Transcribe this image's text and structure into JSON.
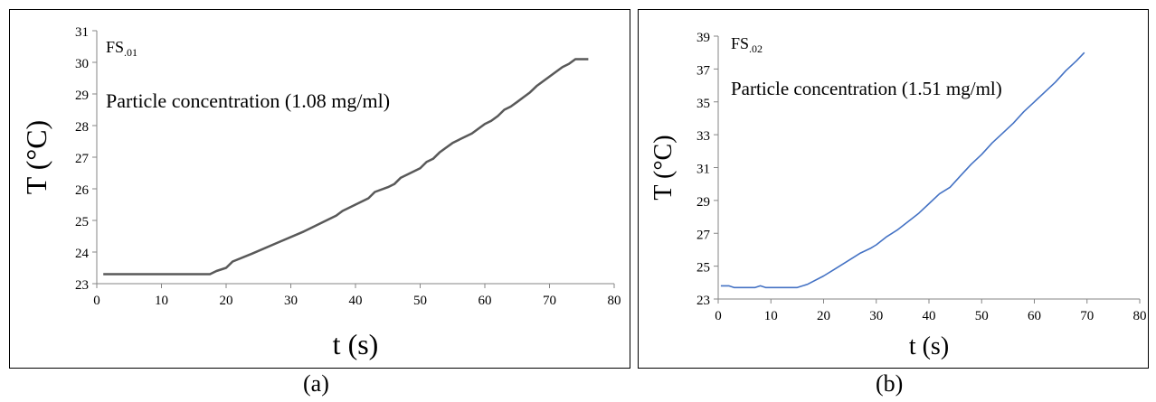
{
  "chart_data": [
    {
      "type": "line",
      "panel_label": "(a)",
      "series_label": "FS",
      "series_label_sub": ".01",
      "annotation": "Particle concentration (1.08 mg/ml)",
      "xlabel": "t (s)",
      "ylabel": "T (°C)",
      "xlim": [
        0,
        80
      ],
      "ylim": [
        23,
        31
      ],
      "xticks": [
        0,
        10,
        20,
        30,
        40,
        50,
        60,
        70,
        80
      ],
      "yticks": [
        23,
        24,
        25,
        26,
        27,
        28,
        29,
        30,
        31
      ],
      "grid": false,
      "color": "#595959",
      "x": [
        1,
        5,
        10,
        15,
        17.5,
        18.5,
        20,
        21,
        24,
        28,
        32,
        36,
        37,
        38,
        40,
        42,
        43,
        45,
        46,
        47,
        50,
        51,
        52,
        53,
        54,
        55,
        56,
        58,
        60,
        61,
        62,
        63,
        64,
        65,
        66,
        67,
        68,
        70,
        72,
        73,
        74,
        75,
        76
      ],
      "y": [
        23.3,
        23.3,
        23.3,
        23.3,
        23.3,
        23.4,
        23.5,
        23.7,
        23.95,
        24.3,
        24.65,
        25.05,
        25.15,
        25.3,
        25.5,
        25.7,
        25.9,
        26.05,
        26.15,
        26.35,
        26.65,
        26.85,
        26.95,
        27.15,
        27.3,
        27.45,
        27.55,
        27.75,
        28.05,
        28.15,
        28.3,
        28.5,
        28.6,
        28.75,
        28.9,
        29.05,
        29.25,
        29.55,
        29.85,
        29.95,
        30.1,
        30.1,
        30.1
      ]
    },
    {
      "type": "line",
      "panel_label": "(b)",
      "series_label": "FS",
      "series_label_sub": ".02",
      "annotation": "Particle concentration (1.51 mg/ml)",
      "xlabel": "t (s)",
      "ylabel": "T (°C)",
      "xlim": [
        0,
        80
      ],
      "ylim": [
        23,
        39
      ],
      "xticks": [
        0,
        10,
        20,
        30,
        40,
        50,
        60,
        70,
        80
      ],
      "yticks": [
        23,
        25,
        27,
        29,
        31,
        33,
        35,
        37,
        39
      ],
      "grid": false,
      "color": "#4472C4",
      "x": [
        0.5,
        2,
        3,
        5,
        6,
        7,
        8,
        9,
        10,
        12,
        14,
        15,
        17,
        20,
        22,
        25,
        27,
        29,
        30,
        32,
        34,
        36,
        38,
        40,
        42,
        44,
        46,
        48,
        50,
        52,
        54,
        56,
        58,
        60,
        62,
        64,
        66,
        68,
        69.5
      ],
      "y": [
        23.8,
        23.8,
        23.7,
        23.7,
        23.7,
        23.7,
        23.8,
        23.7,
        23.7,
        23.7,
        23.7,
        23.7,
        23.9,
        24.4,
        24.8,
        25.4,
        25.8,
        26.1,
        26.3,
        26.8,
        27.2,
        27.7,
        28.2,
        28.8,
        29.4,
        29.8,
        30.5,
        31.2,
        31.8,
        32.5,
        33.1,
        33.7,
        34.4,
        35.0,
        35.6,
        36.2,
        36.9,
        37.5,
        38.0
      ]
    }
  ]
}
